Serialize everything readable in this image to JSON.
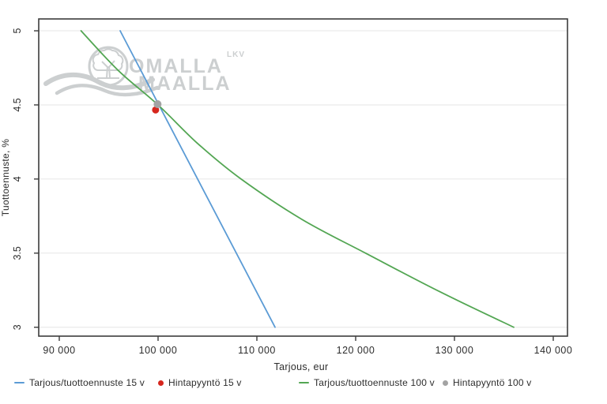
{
  "chart_data": {
    "type": "line",
    "title": "",
    "xlabel": "Tarjous, eur",
    "ylabel": "Tuottoennuste, %",
    "xlim": [
      87920,
      141440
    ],
    "ylim": [
      2.94,
      5.08
    ],
    "xticks": [
      90000,
      100000,
      110000,
      120000,
      130000,
      140000
    ],
    "xtick_labels": [
      "90 000",
      "100 000",
      "110 000",
      "120 000",
      "130 000",
      "140 000"
    ],
    "yticks": [
      3,
      3.5,
      4,
      4.5,
      5
    ],
    "ytick_labels": [
      "3",
      "3.5",
      "4",
      "4.5",
      "5"
    ],
    "grid": "horizontal-only",
    "legend_position": "bottom-row",
    "axis_color": "#3c3c3c",
    "grid_color": "#e6e6e6",
    "text_color": "#2d2d2d",
    "series": [
      {
        "name": "Tarjous/tuottoennuste 15 v",
        "kind": "line",
        "color": "#5b9bd5",
        "width": 1.8,
        "points": [
          [
            96160,
            5.0
          ],
          [
            111840,
            3.0
          ]
        ]
      },
      {
        "name": "Hintapyyntö 15 v",
        "kind": "scatter",
        "color": "#d6261d",
        "size": 4.5,
        "points": [
          [
            99750,
            4.466
          ]
        ]
      },
      {
        "name": "Tarjous/tuottoennuste 100 v",
        "kind": "line",
        "color": "#53a653",
        "width": 1.8,
        "smooth": true,
        "points": [
          [
            92200,
            5.0
          ],
          [
            96000,
            4.73
          ],
          [
            100000,
            4.5
          ],
          [
            104000,
            4.24
          ],
          [
            108400,
            4.0
          ],
          [
            114500,
            3.73
          ],
          [
            121000,
            3.5
          ],
          [
            128500,
            3.24
          ],
          [
            136000,
            3.0
          ]
        ]
      },
      {
        "name": "Hintapyyntö 100 v",
        "kind": "scatter",
        "color": "#a3a3a3",
        "size": 5,
        "points": [
          [
            99950,
            4.505
          ]
        ]
      }
    ]
  },
  "watermark": {
    "brand_line1": "OMALLA",
    "brand_line2": "MAALLA",
    "brand_suffix": "LKV",
    "logo": "tree-in-circle-with-wave",
    "color": "#c7cacc"
  }
}
